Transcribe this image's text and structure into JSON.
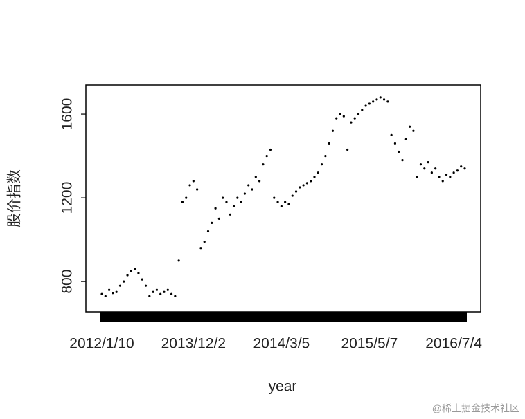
{
  "chart_data": {
    "type": "scatter",
    "x_label": "year",
    "y_label": "股价指数",
    "watermark": "@稀土掘金技术社区",
    "categories": [
      "2012/1/10",
      null,
      null,
      null,
      null,
      null,
      null,
      null,
      null,
      null,
      null,
      null,
      null,
      null,
      null,
      null,
      null,
      null,
      null,
      null,
      null,
      null,
      null,
      null,
      null,
      "2013/12/2",
      null,
      null,
      null,
      null,
      null,
      null,
      null,
      null,
      null,
      null,
      null,
      null,
      null,
      null,
      null,
      null,
      null,
      null,
      null,
      null,
      null,
      null,
      null,
      "2014/3/5",
      null,
      null,
      null,
      null,
      null,
      null,
      null,
      null,
      null,
      null,
      null,
      null,
      null,
      null,
      null,
      null,
      null,
      null,
      null,
      null,
      null,
      null,
      null,
      "2015/5/7",
      null,
      null,
      null,
      null,
      null,
      null,
      null,
      null,
      null,
      null,
      null,
      null,
      null,
      null,
      null,
      null,
      null,
      null,
      null,
      null,
      null,
      null,
      "2016/7/4",
      null,
      null,
      null
    ],
    "values": [
      740,
      730,
      760,
      745,
      750,
      780,
      800,
      830,
      850,
      860,
      840,
      810,
      780,
      730,
      750,
      760,
      740,
      750,
      760,
      740,
      730,
      900,
      1180,
      1200,
      1260,
      1280,
      1240,
      960,
      990,
      1040,
      1080,
      1150,
      1100,
      1200,
      1180,
      1120,
      1160,
      1200,
      1180,
      1220,
      1260,
      1240,
      1300,
      1280,
      1360,
      1400,
      1430,
      1200,
      1180,
      1160,
      1180,
      1170,
      1210,
      1230,
      1250,
      1260,
      1270,
      1280,
      1300,
      1320,
      1360,
      1400,
      1460,
      1520,
      1580,
      1600,
      1590,
      1430,
      1560,
      1580,
      1600,
      1620,
      1640,
      1650,
      1660,
      1670,
      1680,
      1670,
      1660,
      1500,
      1460,
      1420,
      1380,
      1480,
      1540,
      1520,
      1300,
      1360,
      1340,
      1370,
      1320,
      1340,
      1300,
      1280,
      1310,
      1300,
      1320,
      1330,
      1350,
      1340
    ],
    "color": "#000000",
    "ylim": [
      655,
      1739
    ],
    "yticks": [
      800,
      1200,
      1600
    ]
  }
}
